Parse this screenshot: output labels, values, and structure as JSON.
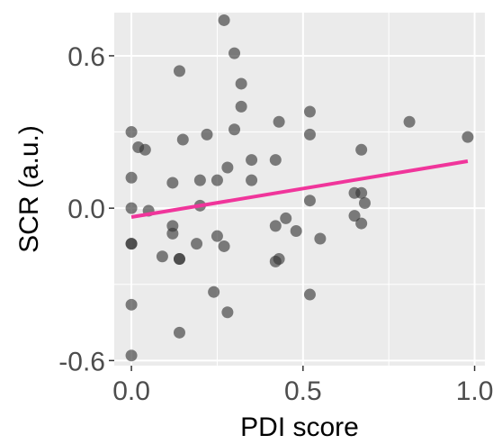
{
  "chart_data": {
    "type": "scatter",
    "xlabel": "PDI score",
    "ylabel": "SCR (a.u.)",
    "xlim": [
      -0.05,
      1.03
    ],
    "ylim": [
      -0.62,
      0.77
    ],
    "x_ticks": [
      0.0,
      0.5,
      1.0
    ],
    "x_tick_labels": [
      "0.0",
      "0.5",
      "1.0"
    ],
    "y_ticks": [
      0.6,
      0.0,
      -0.6
    ],
    "y_tick_labels": [
      "0.6",
      "0.0",
      "-0.6"
    ],
    "grid": true,
    "colors": {
      "panel": "#ebebeb",
      "grid": "#ffffff",
      "point": "#333333",
      "trend": "#f0359b",
      "tick": "#4d4d4d"
    },
    "points": [
      {
        "x": 0.0,
        "y": -0.58
      },
      {
        "x": 0.0,
        "y": -0.38
      },
      {
        "x": 0.0,
        "y": -0.14
      },
      {
        "x": 0.0,
        "y": -0.14
      },
      {
        "x": 0.0,
        "y": 0.0
      },
      {
        "x": 0.0,
        "y": 0.12
      },
      {
        "x": 0.0,
        "y": 0.3
      },
      {
        "x": 0.02,
        "y": 0.24
      },
      {
        "x": 0.04,
        "y": 0.23
      },
      {
        "x": 0.05,
        "y": -0.01
      },
      {
        "x": 0.09,
        "y": -0.19
      },
      {
        "x": 0.12,
        "y": -0.07
      },
      {
        "x": 0.12,
        "y": -0.1
      },
      {
        "x": 0.12,
        "y": 0.1
      },
      {
        "x": 0.14,
        "y": -0.2
      },
      {
        "x": 0.14,
        "y": -0.2
      },
      {
        "x": 0.14,
        "y": -0.49
      },
      {
        "x": 0.14,
        "y": 0.54
      },
      {
        "x": 0.15,
        "y": 0.27
      },
      {
        "x": 0.19,
        "y": -0.14
      },
      {
        "x": 0.2,
        "y": 0.01
      },
      {
        "x": 0.2,
        "y": 0.11
      },
      {
        "x": 0.22,
        "y": 0.29
      },
      {
        "x": 0.24,
        "y": -0.33
      },
      {
        "x": 0.25,
        "y": -0.11
      },
      {
        "x": 0.25,
        "y": 0.11
      },
      {
        "x": 0.27,
        "y": -0.15
      },
      {
        "x": 0.27,
        "y": 0.74
      },
      {
        "x": 0.28,
        "y": -0.41
      },
      {
        "x": 0.28,
        "y": 0.16
      },
      {
        "x": 0.3,
        "y": 0.61
      },
      {
        "x": 0.3,
        "y": 0.31
      },
      {
        "x": 0.32,
        "y": 0.49
      },
      {
        "x": 0.32,
        "y": 0.4
      },
      {
        "x": 0.35,
        "y": 0.19
      },
      {
        "x": 0.35,
        "y": 0.11
      },
      {
        "x": 0.42,
        "y": 0.19
      },
      {
        "x": 0.42,
        "y": -0.07
      },
      {
        "x": 0.42,
        "y": -0.21
      },
      {
        "x": 0.43,
        "y": 0.34
      },
      {
        "x": 0.43,
        "y": -0.2
      },
      {
        "x": 0.45,
        "y": -0.04
      },
      {
        "x": 0.48,
        "y": -0.09
      },
      {
        "x": 0.52,
        "y": 0.38
      },
      {
        "x": 0.52,
        "y": 0.29
      },
      {
        "x": 0.52,
        "y": 0.03
      },
      {
        "x": 0.52,
        "y": -0.34
      },
      {
        "x": 0.55,
        "y": -0.12
      },
      {
        "x": 0.65,
        "y": 0.06
      },
      {
        "x": 0.65,
        "y": -0.03
      },
      {
        "x": 0.67,
        "y": 0.23
      },
      {
        "x": 0.67,
        "y": 0.06
      },
      {
        "x": 0.67,
        "y": -0.06
      },
      {
        "x": 0.68,
        "y": 0.02
      },
      {
        "x": 0.81,
        "y": 0.34
      },
      {
        "x": 0.98,
        "y": 0.28
      }
    ],
    "trend_line": {
      "x": [
        0.0,
        0.98
      ],
      "y": [
        -0.035,
        0.185
      ]
    }
  }
}
